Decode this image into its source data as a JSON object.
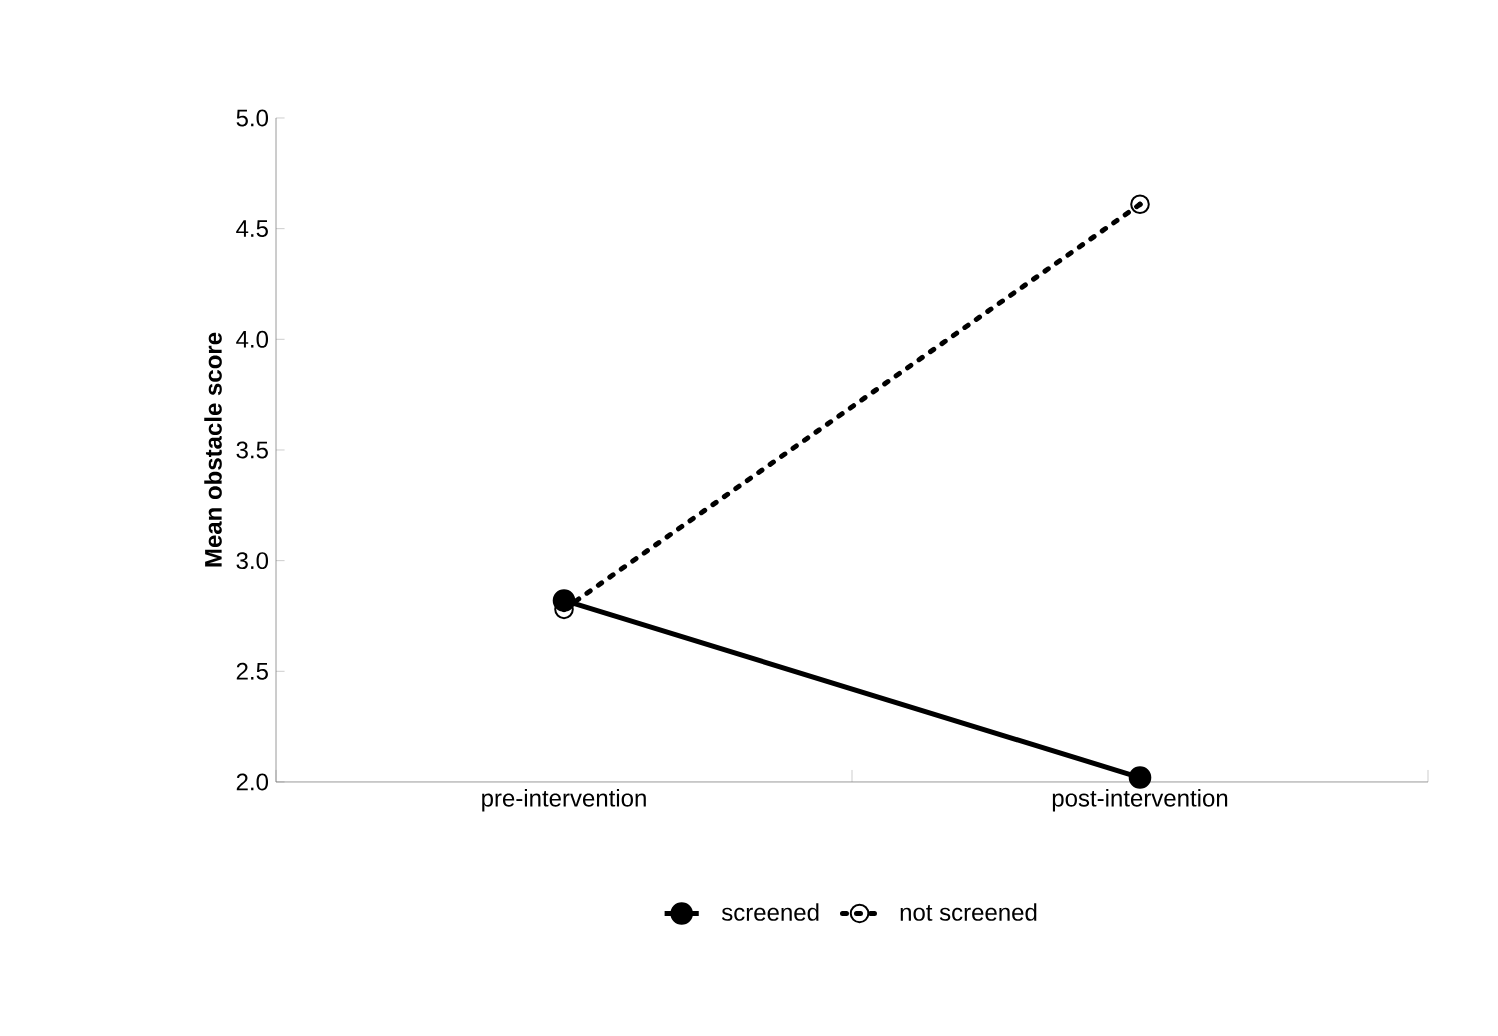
{
  "chart_data": {
    "type": "line",
    "ylabel": "Mean obstacle score",
    "categories": [
      "pre-intervention",
      "post-intervention"
    ],
    "series": [
      {
        "name": "screened",
        "color": "#000000",
        "values": [
          2.82,
          2.02
        ],
        "marker": "circle",
        "line_style": "solid"
      },
      {
        "name": "not screened",
        "color": "#000000",
        "values": [
          2.78,
          4.61
        ],
        "marker": "circle",
        "line_style": "dotted"
      }
    ],
    "ylim": [
      2.0,
      5.0
    ],
    "yticks": [
      {
        "value": 2.0,
        "label": "2.0"
      },
      {
        "value": 2.5,
        "label": "2.5"
      },
      {
        "value": 3.0,
        "label": "3.0"
      },
      {
        "value": 3.5,
        "label": "3.5"
      },
      {
        "value": 4.0,
        "label": "4.0"
      },
      {
        "value": 4.5,
        "label": "4.5"
      },
      {
        "value": 5.0,
        "label": "5.0"
      }
    ],
    "grid": false,
    "legend": "bottom"
  }
}
